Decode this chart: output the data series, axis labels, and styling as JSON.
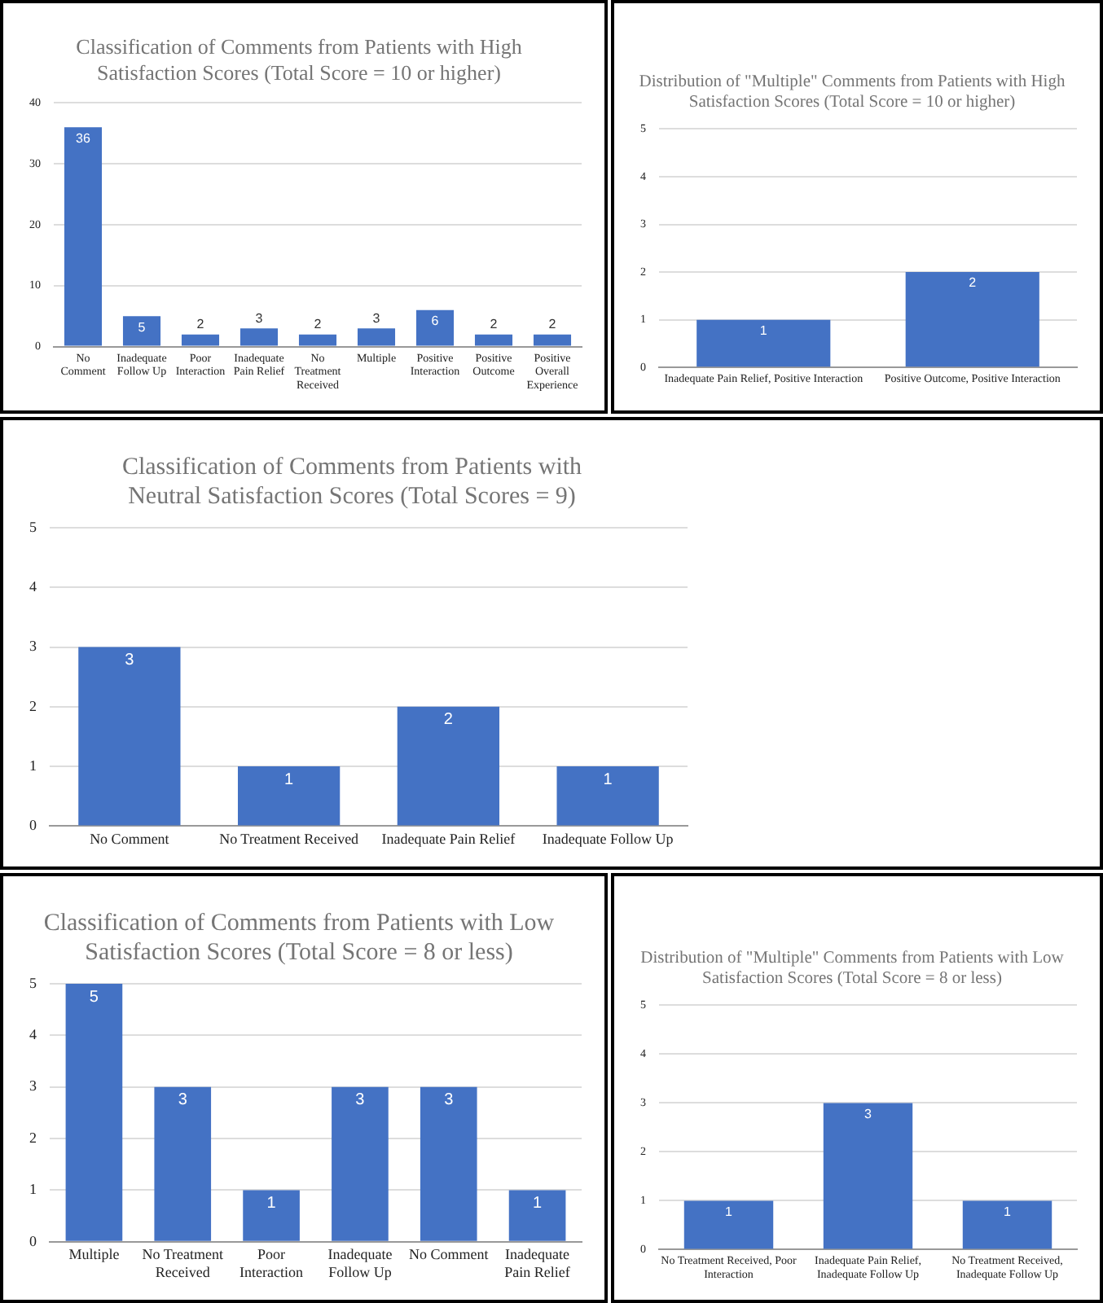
{
  "chart_data": [
    {
      "type": "bar",
      "title": "Classification of Comments from Patients with High Satisfaction Scores (Total Score = 10 or higher)",
      "categories": [
        "No Comment",
        "Inadequate Follow Up",
        "Poor Interaction",
        "Inadequate Pain Relief",
        "No Treatment Received",
        "Multiple",
        "Positive Interaction",
        "Positive Outcome",
        "Positive Overall Experience"
      ],
      "values": [
        36,
        5,
        2,
        3,
        2,
        3,
        6,
        2,
        2
      ],
      "color": "#4472c4",
      "ylim": [
        0,
        40
      ],
      "yticks": [
        0,
        10,
        20,
        30,
        40
      ],
      "grid": "y",
      "data_labels": true,
      "legend": false
    },
    {
      "type": "bar",
      "title": "Distribution of \"Multiple\" Comments from Patients with High Satisfaction Scores (Total Score = 10 or higher)",
      "categories": [
        "Inadequate Pain Relief, Positive Interaction",
        "Positive Outcome, Positive Interaction"
      ],
      "values": [
        1,
        2
      ],
      "color": "#4472c4",
      "ylim": [
        0,
        5
      ],
      "yticks": [
        0,
        1,
        2,
        3,
        4,
        5
      ],
      "grid": "y",
      "data_labels": true,
      "legend": false
    },
    {
      "type": "bar",
      "title": "Classification of Comments from Patients with Neutral Satisfaction Scores (Total Scores = 9)",
      "categories": [
        "No Comment",
        "No Treatment Received",
        "Inadequate Pain Relief",
        "Inadequate Follow Up"
      ],
      "values": [
        3,
        1,
        2,
        1
      ],
      "color": "#4472c4",
      "ylim": [
        0,
        5
      ],
      "yticks": [
        0,
        1,
        2,
        3,
        4,
        5
      ],
      "grid": "y",
      "data_labels": true,
      "legend": false
    },
    {
      "type": "bar",
      "title": "Classification of Comments from Patients with Low Satisfaction Scores (Total Score = 8 or less)",
      "categories": [
        "Multiple",
        "No Treatment Received",
        "Poor Interaction",
        "Inadequate Follow Up",
        "No Comment",
        "Inadequate Pain Relief"
      ],
      "values": [
        5,
        3,
        1,
        3,
        3,
        1
      ],
      "color": "#4472c4",
      "ylim": [
        0,
        5
      ],
      "yticks": [
        0,
        1,
        2,
        3,
        4,
        5
      ],
      "grid": "y",
      "data_labels": true,
      "legend": false
    },
    {
      "type": "bar",
      "title": "Distribution of \"Multiple\" Comments from Patients with Low Satisfaction Scores (Total Score = 8 or less)",
      "categories": [
        "No Treatment Received, Poor Interaction",
        "Inadequate Pain Relief, Inadequate Follow Up",
        "No Treatment Received, Inadequate Follow Up"
      ],
      "values": [
        1,
        3,
        1
      ],
      "color": "#4472c4",
      "ylim": [
        0,
        5
      ],
      "yticks": [
        0,
        1,
        2,
        3,
        4,
        5
      ],
      "grid": "y",
      "data_labels": true,
      "legend": false
    }
  ]
}
